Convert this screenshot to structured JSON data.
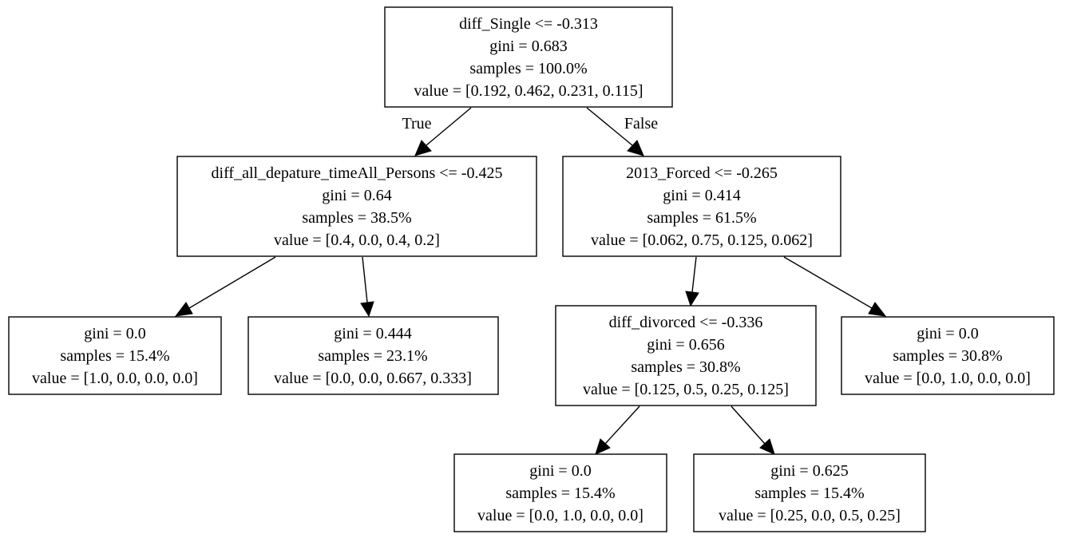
{
  "nodes": {
    "root": [
      "diff_Single <= -0.313",
      "gini = 0.683",
      "samples = 100.0%",
      "value = [0.192, 0.462, 0.231, 0.115]"
    ],
    "n1": [
      "diff_all_depature_timeAll_Persons <= -0.425",
      "gini = 0.64",
      "samples = 38.5%",
      "value = [0.4, 0.0, 0.4, 0.2]"
    ],
    "n2": [
      "2013_Forced <= -0.265",
      "gini = 0.414",
      "samples = 61.5%",
      "value = [0.062, 0.75, 0.125, 0.062]"
    ],
    "n3": [
      "gini = 0.0",
      "samples = 15.4%",
      "value = [1.0, 0.0, 0.0, 0.0]"
    ],
    "n4": [
      "gini = 0.444",
      "samples = 23.1%",
      "value = [0.0, 0.0, 0.667, 0.333]"
    ],
    "n5": [
      "diff_divorced <= -0.336",
      "gini = 0.656",
      "samples = 30.8%",
      "value = [0.125, 0.5, 0.25, 0.125]"
    ],
    "n6": [
      "gini = 0.0",
      "samples = 30.8%",
      "value = [0.0, 1.0, 0.0, 0.0]"
    ],
    "n7": [
      "gini = 0.0",
      "samples = 15.4%",
      "value = [0.0, 1.0, 0.0, 0.0]"
    ],
    "n8": [
      "gini = 0.625",
      "samples = 15.4%",
      "value = [0.25, 0.0, 0.5, 0.25]"
    ]
  },
  "edge_labels": {
    "true_label": "True",
    "false_label": "False"
  }
}
